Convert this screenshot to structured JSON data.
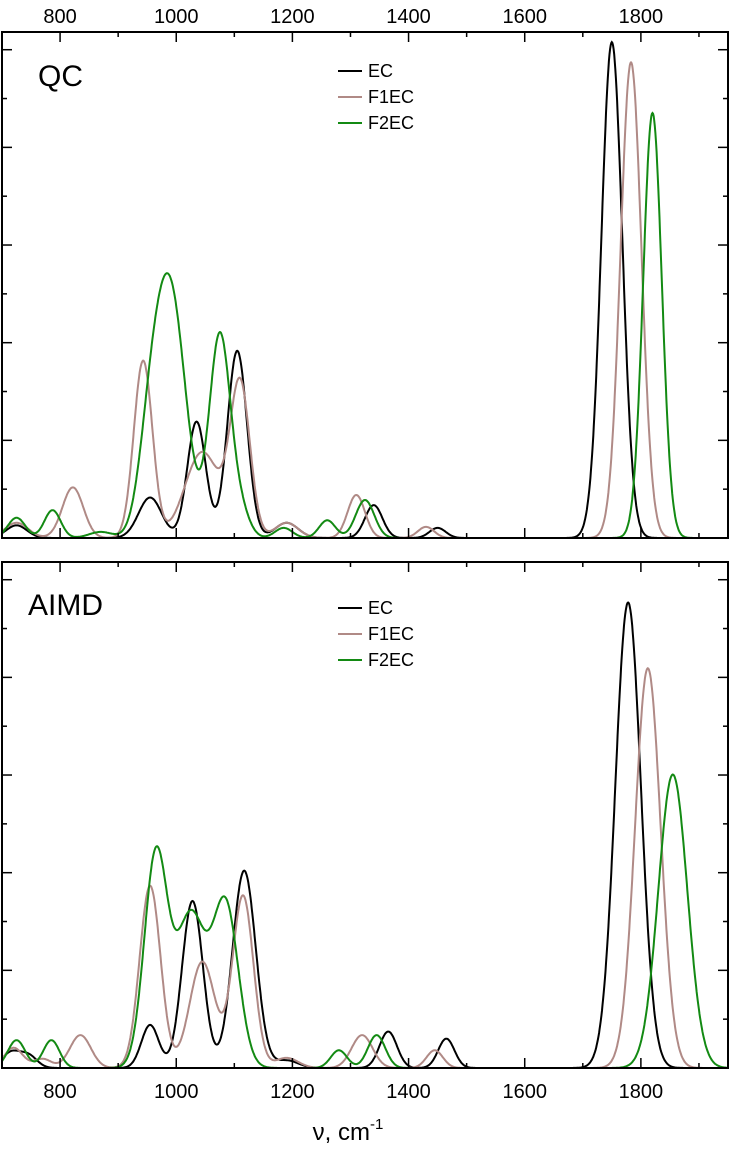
{
  "chart_data": [
    {
      "type": "line",
      "panel_label": "QC",
      "xlim": [
        700,
        1950
      ],
      "xticks": [
        800,
        1000,
        1200,
        1400,
        1600,
        1800
      ],
      "x_tick_labels_top": true,
      "y_tick_labels": false,
      "legend_position": "top-center",
      "series": [
        {
          "name": "EC",
          "color": "#000000",
          "peaks": [
            {
              "x": 725,
              "h": 0.025,
              "w": 18
            },
            {
              "x": 955,
              "h": 0.08,
              "w": 20
            },
            {
              "x": 1035,
              "h": 0.23,
              "w": 16
            },
            {
              "x": 1105,
              "h": 0.37,
              "w": 17
            },
            {
              "x": 1190,
              "h": 0.03,
              "w": 20
            },
            {
              "x": 1340,
              "h": 0.065,
              "w": 15
            },
            {
              "x": 1450,
              "h": 0.02,
              "w": 14
            },
            {
              "x": 1750,
              "h": 0.98,
              "w": 18
            }
          ]
        },
        {
          "name": "F1EC",
          "color": "#b08a86",
          "peaks": [
            {
              "x": 725,
              "h": 0.03,
              "w": 20
            },
            {
              "x": 822,
              "h": 0.1,
              "w": 18
            },
            {
              "x": 943,
              "h": 0.35,
              "w": 16
            },
            {
              "x": 1045,
              "h": 0.17,
              "w": 30
            },
            {
              "x": 1110,
              "h": 0.3,
              "w": 17
            },
            {
              "x": 1190,
              "h": 0.03,
              "w": 20
            },
            {
              "x": 1310,
              "h": 0.085,
              "w": 15
            },
            {
              "x": 1430,
              "h": 0.022,
              "w": 14
            },
            {
              "x": 1783,
              "h": 0.94,
              "w": 18
            }
          ]
        },
        {
          "name": "F2EC",
          "color": "#138a13",
          "peaks": [
            {
              "x": 725,
              "h": 0.04,
              "w": 15
            },
            {
              "x": 787,
              "h": 0.055,
              "w": 14
            },
            {
              "x": 870,
              "h": 0.012,
              "w": 20
            },
            {
              "x": 955,
              "h": 0.16,
              "w": 20
            },
            {
              "x": 990,
              "h": 0.48,
              "w": 26
            },
            {
              "x": 1075,
              "h": 0.4,
              "w": 18
            },
            {
              "x": 1110,
              "h": 0.05,
              "w": 16
            },
            {
              "x": 1185,
              "h": 0.02,
              "w": 15
            },
            {
              "x": 1260,
              "h": 0.035,
              "w": 14
            },
            {
              "x": 1325,
              "h": 0.075,
              "w": 16
            },
            {
              "x": 1820,
              "h": 0.84,
              "w": 16
            }
          ]
        }
      ]
    },
    {
      "type": "line",
      "panel_label": "AIMD",
      "xlim": [
        700,
        1950
      ],
      "xticks": [
        800,
        1000,
        1200,
        1400,
        1600,
        1800
      ],
      "xlabel": "ν, cm",
      "xlabel_sup": "-1",
      "y_tick_labels": false,
      "legend_position": "top-center",
      "series": [
        {
          "name": "EC",
          "color": "#000000",
          "peaks": [
            {
              "x": 715,
              "h": 0.03,
              "w": 15
            },
            {
              "x": 745,
              "h": 0.025,
              "w": 15
            },
            {
              "x": 955,
              "h": 0.085,
              "w": 15
            },
            {
              "x": 1028,
              "h": 0.33,
              "w": 18
            },
            {
              "x": 1117,
              "h": 0.39,
              "w": 20
            },
            {
              "x": 1190,
              "h": 0.015,
              "w": 20
            },
            {
              "x": 1365,
              "h": 0.072,
              "w": 15
            },
            {
              "x": 1465,
              "h": 0.058,
              "w": 14
            },
            {
              "x": 1778,
              "h": 0.92,
              "w": 22
            }
          ]
        },
        {
          "name": "F1EC",
          "color": "#b08a86",
          "peaks": [
            {
              "x": 720,
              "h": 0.04,
              "w": 16
            },
            {
              "x": 770,
              "h": 0.018,
              "w": 15
            },
            {
              "x": 835,
              "h": 0.065,
              "w": 18
            },
            {
              "x": 955,
              "h": 0.36,
              "w": 18
            },
            {
              "x": 1045,
              "h": 0.21,
              "w": 22
            },
            {
              "x": 1115,
              "h": 0.34,
              "w": 18
            },
            {
              "x": 1190,
              "h": 0.02,
              "w": 20
            },
            {
              "x": 1320,
              "h": 0.065,
              "w": 18
            },
            {
              "x": 1445,
              "h": 0.035,
              "w": 14
            },
            {
              "x": 1812,
              "h": 0.79,
              "w": 22
            }
          ]
        },
        {
          "name": "F2EC",
          "color": "#138a13",
          "peaks": [
            {
              "x": 725,
              "h": 0.055,
              "w": 15
            },
            {
              "x": 785,
              "h": 0.055,
              "w": 14
            },
            {
              "x": 965,
              "h": 0.42,
              "w": 20
            },
            {
              "x": 1025,
              "h": 0.3,
              "w": 25
            },
            {
              "x": 1085,
              "h": 0.32,
              "w": 22
            },
            {
              "x": 1280,
              "h": 0.035,
              "w": 14
            },
            {
              "x": 1345,
              "h": 0.065,
              "w": 15
            },
            {
              "x": 1855,
              "h": 0.58,
              "w": 25
            }
          ]
        }
      ]
    }
  ]
}
